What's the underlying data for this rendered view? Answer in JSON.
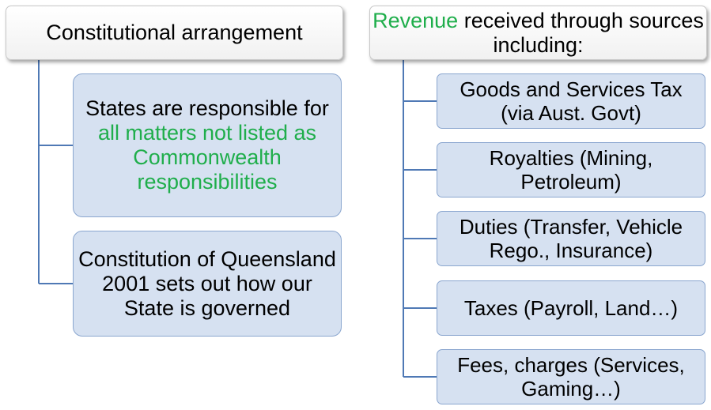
{
  "left": {
    "header": "Constitutional arrangement",
    "boxes": [
      {
        "plain": "States are responsible for ",
        "highlight": "all matters not listed as Commonwealth responsibilities"
      },
      {
        "text": "Constitution of Queensland 2001 sets out how our State is governed"
      }
    ]
  },
  "right": {
    "header": {
      "highlight": "Revenue",
      "rest": " received through sources including:"
    },
    "boxes": [
      "Goods and Services Tax (via Aust. Govt)",
      "Royalties (Mining, Petroleum)",
      "Duties (Transfer, Vehicle Rego., Insurance)",
      "Taxes (Payroll, Land…)",
      "Fees, charges (Services, Gaming…)"
    ]
  },
  "colors": {
    "highlight": "#1fae4b",
    "box_fill": "#d6e1f1",
    "box_border": "#8aa6cf",
    "connector": "#4f79b5"
  }
}
